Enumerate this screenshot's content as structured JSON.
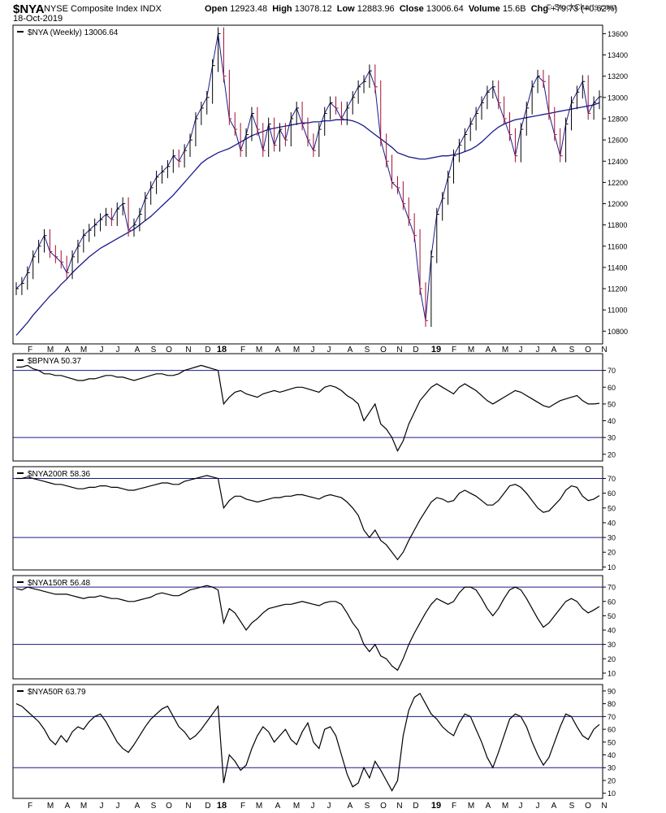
{
  "header": {
    "symbol": "$NYA",
    "company": "NYSE Composite Index  INDX",
    "date": "18-Oct-2019",
    "open_label": "Open",
    "open": "12923.48",
    "high_label": "High",
    "high": "13078.12",
    "low_label": "Low",
    "low": "12883.96",
    "close_label": "Close",
    "close": "13006.64",
    "volume_label": "Volume",
    "volume": "15.6B",
    "chg_label": "Chg",
    "chg": "+79.73 (+0.62%)",
    "copyright": "© StockCharts.com"
  },
  "colors": {
    "price_up": "#000000",
    "price_down": "#a01030",
    "moving_average": "#1a1a8c",
    "indicator_line": "#000000",
    "reference_line": "#1a1a8c",
    "panel_border": "#000000"
  },
  "chart_data": [
    {
      "type": "ohlc",
      "legend": "$NYA (Weekly) 13006.64",
      "overlay": "moving average",
      "x_labels": [
        "F",
        "M",
        "A",
        "M",
        "J",
        "J",
        "A",
        "S",
        "O",
        "N",
        "D",
        "18",
        "F",
        "M",
        "A",
        "M",
        "J",
        "J",
        "A",
        "S",
        "O",
        "N",
        "D",
        "19",
        "F",
        "M",
        "A",
        "M",
        "J",
        "J",
        "A",
        "S",
        "O",
        "N"
      ],
      "y_ticks": [
        10800,
        11000,
        11200,
        11400,
        11600,
        11800,
        12000,
        12200,
        12400,
        12600,
        12800,
        13000,
        13200,
        13400,
        13600
      ],
      "ylim": [
        10680,
        13680
      ],
      "close_series": [
        11200,
        11250,
        11350,
        11500,
        11600,
        11700,
        11550,
        11500,
        11450,
        11350,
        11500,
        11600,
        11700,
        11750,
        11800,
        11850,
        11900,
        11850,
        11950,
        12000,
        11750,
        11800,
        11900,
        12050,
        12150,
        12250,
        12300,
        12350,
        12450,
        12400,
        12500,
        12600,
        12800,
        12900,
        13000,
        13300,
        13600,
        13200,
        12800,
        12700,
        12500,
        12650,
        12850,
        12700,
        12500,
        12750,
        12550,
        12700,
        12600,
        12800,
        12900,
        12750,
        12600,
        12500,
        12700,
        12850,
        12950,
        12900,
        12800,
        12900,
        13000,
        13100,
        13150,
        13250,
        13100,
        12600,
        12400,
        12200,
        12150,
        12000,
        11850,
        11700,
        11200,
        10900,
        11500,
        11900,
        12050,
        12250,
        12450,
        12550,
        12650,
        12750,
        12850,
        12950,
        13050,
        13100,
        12950,
        12800,
        12650,
        12450,
        12700,
        12900,
        13100,
        13200,
        13150,
        12850,
        12650,
        12450,
        12750,
        12950,
        13050,
        13150,
        12850,
        12950,
        13006.64
      ],
      "ma_series": [
        10760,
        10820,
        10880,
        10950,
        11010,
        11070,
        11130,
        11180,
        11240,
        11290,
        11350,
        11400,
        11450,
        11500,
        11540,
        11580,
        11610,
        11640,
        11670,
        11700,
        11730,
        11760,
        11800,
        11840,
        11880,
        11930,
        11980,
        12030,
        12080,
        12140,
        12200,
        12260,
        12320,
        12380,
        12420,
        12450,
        12480,
        12500,
        12520,
        12550,
        12580,
        12610,
        12640,
        12660,
        12680,
        12700,
        12710,
        12720,
        12730,
        12740,
        12750,
        12760,
        12760,
        12770,
        12770,
        12780,
        12780,
        12790,
        12790,
        12790,
        12780,
        12760,
        12730,
        12690,
        12650,
        12610,
        12570,
        12530,
        12480,
        12460,
        12440,
        12430,
        12420,
        12420,
        12430,
        12440,
        12450,
        12450,
        12460,
        12470,
        12490,
        12510,
        12540,
        12580,
        12630,
        12680,
        12720,
        12750,
        12770,
        12790,
        12800,
        12810,
        12820,
        12830,
        12840,
        12850,
        12860,
        12870,
        12880,
        12890,
        12900,
        12910,
        12920,
        12930,
        12950
      ]
    },
    {
      "type": "line",
      "legend": "$BPNYA 50.37",
      "y_ticks": [
        20,
        30,
        40,
        50,
        60,
        70
      ],
      "ylim": [
        16,
        80
      ],
      "reference_lines": [
        70,
        30
      ],
      "values": [
        72,
        72,
        73,
        71,
        70,
        68,
        68,
        67,
        67,
        66,
        65,
        64,
        64,
        65,
        65,
        66,
        67,
        67,
        66,
        66,
        65,
        64,
        65,
        66,
        67,
        68,
        68,
        67,
        67,
        68,
        70,
        71,
        72,
        73,
        72,
        71,
        70,
        50,
        54,
        57,
        58,
        56,
        55,
        54,
        56,
        57,
        58,
        57,
        58,
        59,
        60,
        60,
        59,
        58,
        57,
        60,
        61,
        60,
        58,
        55,
        53,
        50,
        40,
        45,
        50,
        38,
        35,
        30,
        22,
        28,
        38,
        45,
        52,
        56,
        60,
        62,
        60,
        58,
        56,
        60,
        62,
        60,
        58,
        55,
        52,
        50,
        52,
        54,
        56,
        58,
        57,
        55,
        53,
        51,
        49,
        48,
        50,
        52,
        53,
        54,
        55,
        52,
        50,
        50,
        50.37
      ]
    },
    {
      "type": "line",
      "legend": "$NYA200R 58.36",
      "y_ticks": [
        10,
        20,
        30,
        40,
        50,
        60,
        70
      ],
      "ylim": [
        8,
        78
      ],
      "reference_lines": [
        70,
        30
      ],
      "values": [
        70,
        70,
        71,
        70,
        69,
        68,
        67,
        66,
        66,
        65,
        64,
        63,
        63,
        64,
        64,
        65,
        65,
        64,
        64,
        63,
        62,
        62,
        63,
        64,
        65,
        66,
        67,
        67,
        66,
        66,
        68,
        69,
        70,
        71,
        72,
        71,
        70,
        50,
        55,
        58,
        58,
        56,
        55,
        54,
        55,
        56,
        57,
        57,
        58,
        58,
        59,
        59,
        58,
        57,
        56,
        58,
        59,
        58,
        57,
        54,
        50,
        45,
        35,
        30,
        35,
        28,
        25,
        20,
        15,
        20,
        28,
        35,
        42,
        48,
        54,
        57,
        56,
        54,
        55,
        60,
        62,
        60,
        58,
        55,
        52,
        52,
        55,
        60,
        65,
        66,
        64,
        60,
        55,
        50,
        47,
        48,
        52,
        56,
        62,
        65,
        64,
        58,
        55,
        56,
        58.36
      ]
    },
    {
      "type": "line",
      "legend": "$NYA150R 56.48",
      "y_ticks": [
        10,
        20,
        30,
        40,
        50,
        60,
        70
      ],
      "ylim": [
        6,
        78
      ],
      "reference_lines": [
        70,
        30
      ],
      "values": [
        69,
        68,
        70,
        69,
        68,
        67,
        66,
        65,
        65,
        65,
        64,
        63,
        62,
        63,
        63,
        64,
        63,
        62,
        62,
        61,
        60,
        60,
        61,
        62,
        63,
        65,
        66,
        65,
        64,
        64,
        66,
        68,
        69,
        70,
        71,
        70,
        68,
        45,
        55,
        52,
        46,
        40,
        45,
        48,
        52,
        55,
        56,
        57,
        58,
        58,
        59,
        60,
        59,
        58,
        57,
        59,
        60,
        60,
        58,
        52,
        45,
        40,
        30,
        25,
        30,
        22,
        20,
        15,
        12,
        20,
        30,
        38,
        45,
        52,
        58,
        62,
        60,
        58,
        60,
        66,
        70,
        70,
        68,
        62,
        55,
        50,
        55,
        62,
        68,
        70,
        68,
        62,
        55,
        48,
        42,
        45,
        50,
        55,
        60,
        62,
        60,
        55,
        52,
        54,
        56.48
      ]
    },
    {
      "type": "line",
      "legend": "$NYA50R 63.79",
      "y_ticks": [
        10,
        20,
        30,
        40,
        50,
        60,
        70,
        80,
        90
      ],
      "ylim": [
        6,
        95
      ],
      "reference_lines": [
        70,
        30
      ],
      "values": [
        80,
        78,
        74,
        70,
        66,
        60,
        52,
        48,
        55,
        50,
        58,
        62,
        60,
        66,
        70,
        72,
        66,
        58,
        50,
        45,
        42,
        48,
        55,
        62,
        68,
        72,
        76,
        78,
        70,
        62,
        58,
        52,
        55,
        60,
        66,
        72,
        78,
        18,
        40,
        35,
        28,
        32,
        45,
        55,
        62,
        58,
        50,
        55,
        60,
        52,
        48,
        58,
        65,
        50,
        45,
        60,
        62,
        55,
        40,
        25,
        15,
        18,
        30,
        22,
        35,
        28,
        20,
        12,
        20,
        55,
        75,
        85,
        88,
        80,
        72,
        68,
        62,
        58,
        55,
        65,
        72,
        70,
        60,
        50,
        38,
        30,
        42,
        55,
        68,
        72,
        70,
        62,
        50,
        40,
        32,
        38,
        50,
        62,
        72,
        70,
        62,
        55,
        52,
        60,
        63.79
      ]
    }
  ]
}
